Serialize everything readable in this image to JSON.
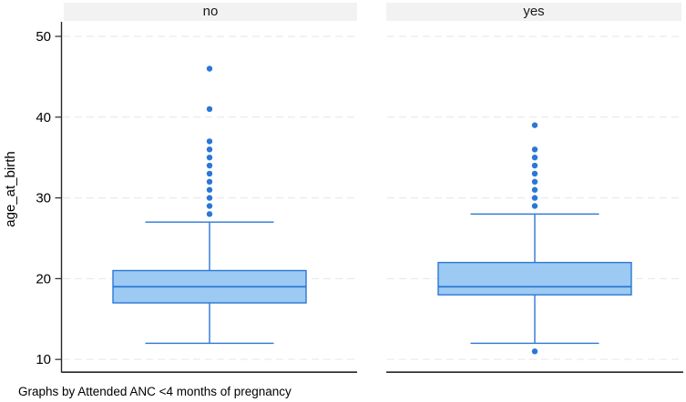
{
  "chart_data": {
    "type": "boxplot",
    "title": "",
    "ylabel": "age_at_birth",
    "xlabel": "",
    "caption": "Graphs by Attended ANC <4 months of pregnancy",
    "yticks": [
      10,
      20,
      30,
      40,
      50
    ],
    "ylim": [
      8.5,
      51.8
    ],
    "grid": "dashed-horizontal",
    "legend": "none",
    "panels": [
      {
        "label": "no",
        "q1": 17,
        "median": 19,
        "q3": 21,
        "whisker_low": 12,
        "whisker_high": 27,
        "outliers_high": [
          28,
          29,
          30,
          31,
          32,
          33,
          34,
          35,
          36,
          37,
          41,
          46
        ],
        "outliers_low": []
      },
      {
        "label": "yes",
        "q1": 18,
        "median": 19,
        "q3": 22,
        "whisker_low": 12,
        "whisker_high": 28,
        "outliers_high": [
          29,
          30,
          31,
          32,
          33,
          34,
          35,
          36,
          39
        ],
        "outliers_low": [
          11
        ]
      }
    ],
    "colors": {
      "box_fill": "#9ccaf2",
      "box_stroke": "#2a77d6",
      "marker": "#2a77d6",
      "grid": "#e6e6e6",
      "axis": "#262626",
      "strip_bg": "#f2f2f2",
      "text": "#000000",
      "background": "#ffffff"
    }
  }
}
